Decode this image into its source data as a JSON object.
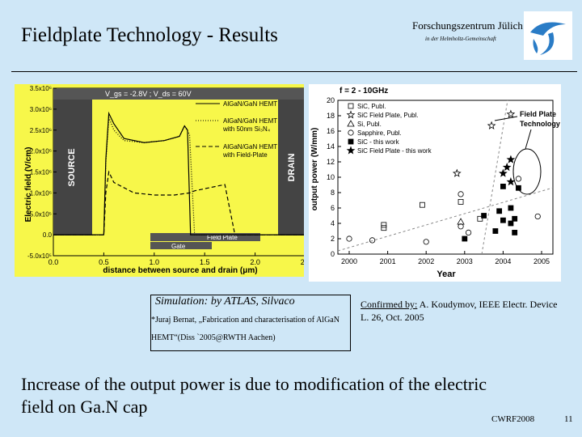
{
  "slide": {
    "title": "Fieldplate Technology - Results",
    "org": "Forschungszentrum Jülich",
    "org_sub": "in der Helmholtz-Gemeinschaft",
    "sim_caption": "Simulation: by ATLAS, Silvaco",
    "sim_ref_line1": "*Juraj Bernat, „Fabrication and characterisation of AlGaN",
    "sim_ref_line2": "HEMT“(Diss `2005@RWTH Aachen)",
    "confirm_lead": "Confirmed by:",
    "confirm_rest1": " A. Koudymov, IEEE Electr. Device",
    "confirm_rest2": "L. 26, Oct. 2005",
    "body_line1": "Increase of the output power is due to modification of the electric",
    "body_line2": "field on Ga.N cap",
    "footer": "CWRF2008",
    "page_number": "11"
  },
  "colors": {
    "background": "#cfe7f7",
    "left_chart_bg": "#f7f74a",
    "logo_blue": "#2a7cc6",
    "dashed_line": "#888888"
  },
  "icons": {
    "logo": "fzj-logo-icon"
  },
  "chart_data": [
    {
      "type": "line",
      "title": "",
      "header": "V_gs = -2.8V ; V_ds = 60V",
      "xlabel": "distance between source and drain (μm)",
      "ylabel": "Electric field (V/cm)",
      "xlim": [
        0.0,
        2.5
      ],
      "ylim": [
        -500000,
        3500000
      ],
      "x_ticks": [
        "0.0",
        "0.5",
        "1.0",
        "1.5",
        "2.0",
        "2.5"
      ],
      "y_ticks": [
        "-5.0x10⁵",
        "0.0",
        "5.0x10⁵",
        "1.0x10⁶",
        "1.5x10⁶",
        "2.0x10⁶",
        "2.5x10⁶",
        "3.0x10⁶",
        "3.5x10⁶"
      ],
      "labels": {
        "source": "SOURCE",
        "drain": "DRAIN",
        "field_plate": "Field Plate",
        "gate": "Gate"
      },
      "grid": false,
      "series": [
        {
          "name": "AlGaN/GaN HEMT",
          "style": "solid",
          "x": [
            0.0,
            0.12,
            0.22,
            0.45,
            0.5,
            0.52,
            0.55,
            0.6,
            0.7,
            0.9,
            1.1,
            1.25,
            1.3,
            1.33,
            1.36,
            1.5,
            2.0,
            2.5
          ],
          "y": [
            0,
            0,
            0,
            0,
            0,
            1800000,
            2900000,
            2650000,
            2300000,
            2200000,
            2250000,
            2350000,
            2600000,
            2500000,
            0,
            0,
            0,
            0
          ]
        },
        {
          "name": "AlGaN/GaN HEMT with 50nm Si₃N₄",
          "style": "dotted",
          "x": [
            0.0,
            0.45,
            0.5,
            0.52,
            0.55,
            0.6,
            0.7,
            0.9,
            1.1,
            1.25,
            1.3,
            1.35,
            1.4,
            1.5,
            2.5
          ],
          "y": [
            0,
            0,
            0,
            1700000,
            2800000,
            2500000,
            2250000,
            2200000,
            2250000,
            2350000,
            2600000,
            2400000,
            0,
            0,
            0
          ]
        },
        {
          "name": "AlGaN/GaN HEMT with Field-Plate",
          "style": "dashed",
          "x": [
            0.0,
            0.45,
            0.5,
            0.52,
            0.55,
            0.6,
            0.8,
            1.0,
            1.2,
            1.35,
            1.4,
            1.5,
            1.6,
            1.7,
            1.75,
            1.8,
            1.95,
            2.5
          ],
          "y": [
            0,
            0,
            0,
            1000000,
            1500000,
            1250000,
            1000000,
            950000,
            950000,
            1000000,
            1050000,
            1100000,
            1150000,
            1200000,
            600000,
            0,
            0,
            0
          ]
        }
      ]
    },
    {
      "type": "scatter",
      "title": "f = 2 - 10GHz",
      "xlabel": "Year",
      "ylabel": "output power (W/mm)",
      "xlim": [
        2000,
        2005
      ],
      "ylim": [
        0,
        20
      ],
      "x_ticks": [
        "2000",
        "2001",
        "2002",
        "2003",
        "2004",
        "2005"
      ],
      "y_ticks": [
        "0",
        "2",
        "4",
        "6",
        "8",
        "10",
        "12",
        "14",
        "16",
        "18",
        "20"
      ],
      "annotation": "Field Plate Technology",
      "grid": false,
      "series": [
        {
          "name": "SiC, Publ.",
          "marker": "square-open",
          "points": [
            [
              2000.9,
              3.8
            ],
            [
              2000.9,
              3.4
            ],
            [
              2001.9,
              6.4
            ],
            [
              2002.9,
              6.8
            ],
            [
              2003.4,
              4.6
            ]
          ]
        },
        {
          "name": "SiC Field Plate, Publ.",
          "marker": "star-open",
          "points": [
            [
              2002.8,
              10.5
            ],
            [
              2003.7,
              16.7
            ],
            [
              2004.2,
              18.2
            ]
          ]
        },
        {
          "name": "Si, Publ.",
          "marker": "triangle-open",
          "points": [
            [
              2002.9,
              4.2
            ]
          ]
        },
        {
          "name": "Sapphire, Publ.",
          "marker": "circle-open",
          "points": [
            [
              2000.0,
              2.0
            ],
            [
              2000.6,
              1.8
            ],
            [
              2002.0,
              1.6
            ],
            [
              2002.9,
              7.8
            ],
            [
              2002.9,
              3.6
            ],
            [
              2003.1,
              2.8
            ],
            [
              2004.4,
              9.8
            ],
            [
              2004.9,
              4.9
            ]
          ]
        },
        {
          "name": "SiC - this work",
          "marker": "square-filled",
          "points": [
            [
              2003.0,
              2.0
            ],
            [
              2003.5,
              5.0
            ],
            [
              2003.8,
              3.0
            ],
            [
              2003.9,
              5.6
            ],
            [
              2004.0,
              8.8
            ],
            [
              2004.0,
              4.4
            ],
            [
              2004.2,
              4.0
            ],
            [
              2004.2,
              6.0
            ],
            [
              2004.3,
              2.8
            ],
            [
              2004.3,
              4.6
            ],
            [
              2004.4,
              8.6
            ]
          ]
        },
        {
          "name": "SiC Field Plate - this work",
          "marker": "star-filled",
          "points": [
            [
              2004.0,
              10.5
            ],
            [
              2004.1,
              11.3
            ],
            [
              2004.2,
              12.3
            ],
            [
              2004.2,
              9.4
            ]
          ]
        }
      ]
    }
  ]
}
